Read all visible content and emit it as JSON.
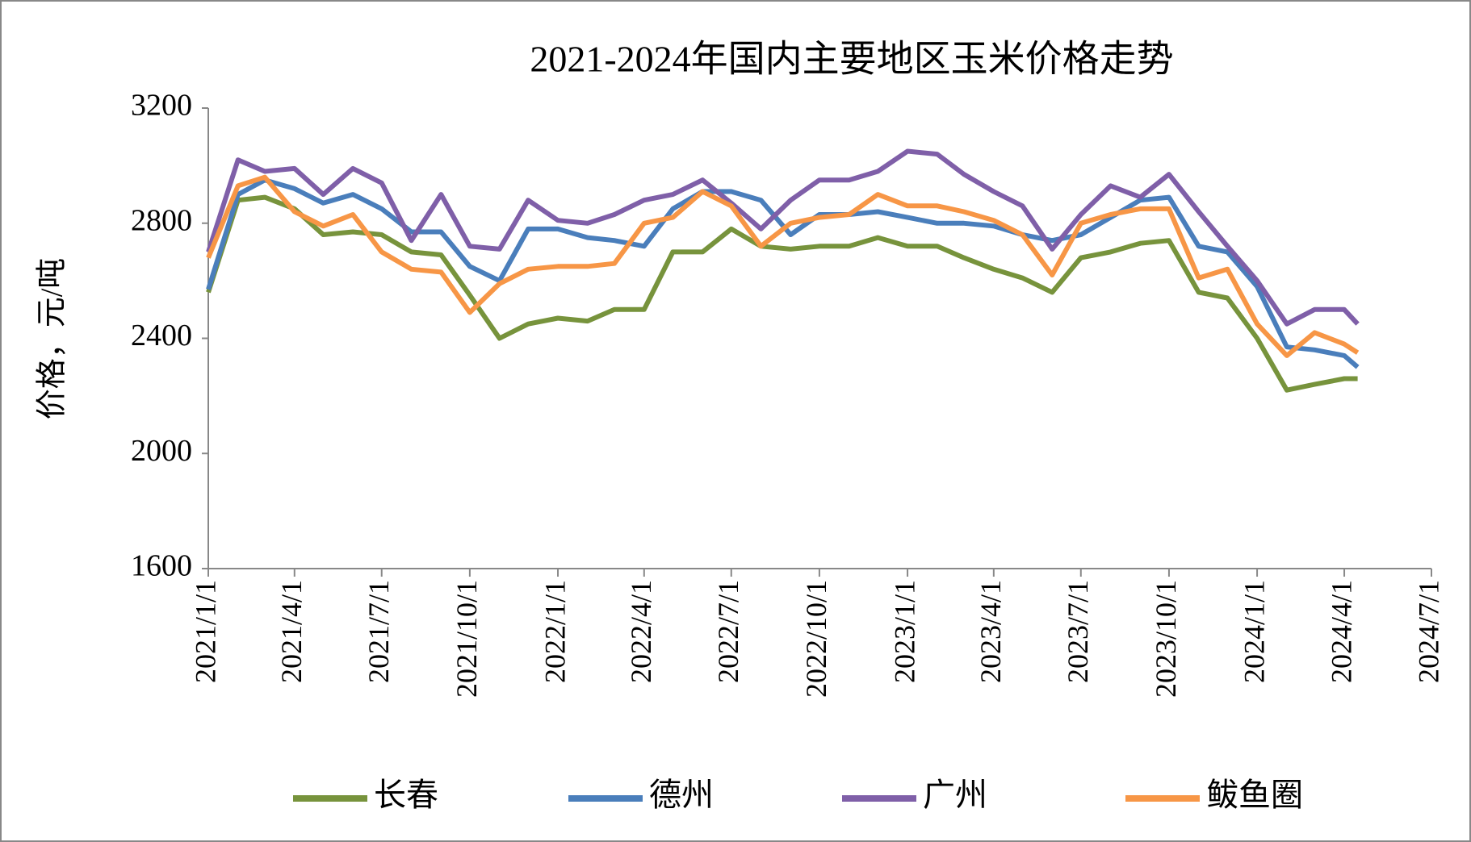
{
  "chart_data": {
    "type": "line",
    "title": "2021-2024年国内主要地区玉米价格走势",
    "y_label": "价格，元/吨",
    "x": [
      "2021/1/1",
      "2021/2/1",
      "2021/3/1",
      "2021/4/1",
      "2021/5/1",
      "2021/6/1",
      "2021/7/1",
      "2021/8/1",
      "2021/9/1",
      "2021/10/1",
      "2021/11/1",
      "2021/12/1",
      "2022/1/1",
      "2022/2/1",
      "2022/3/1",
      "2022/4/1",
      "2022/5/1",
      "2022/6/1",
      "2022/7/1",
      "2022/8/1",
      "2022/9/1",
      "2022/10/1",
      "2022/11/1",
      "2022/12/1",
      "2023/1/1",
      "2023/2/1",
      "2023/3/1",
      "2023/4/1",
      "2023/5/1",
      "2023/6/1",
      "2023/7/1",
      "2023/8/1",
      "2023/9/1",
      "2023/10/1",
      "2023/11/1",
      "2023/12/1",
      "2024/1/1",
      "2024/2/1",
      "2024/3/1",
      "2024/4/1",
      "2024/4/15"
    ],
    "series": [
      {
        "name": "长春",
        "color": "#77933c",
        "values": [
          2560,
          2880,
          2890,
          2850,
          2760,
          2770,
          2760,
          2700,
          2690,
          2550,
          2400,
          2450,
          2470,
          2460,
          2500,
          2500,
          2700,
          2700,
          2780,
          2720,
          2710,
          2720,
          2720,
          2750,
          2720,
          2720,
          2680,
          2640,
          2610,
          2560,
          2680,
          2700,
          2730,
          2740,
          2560,
          2540,
          2400,
          2220,
          2240,
          2260,
          2260
        ]
      },
      {
        "name": "德州",
        "color": "#4a7ebb",
        "values": [
          2570,
          2900,
          2950,
          2920,
          2870,
          2900,
          2850,
          2770,
          2770,
          2650,
          2600,
          2780,
          2780,
          2750,
          2740,
          2720,
          2850,
          2910,
          2910,
          2880,
          2760,
          2830,
          2830,
          2840,
          2820,
          2800,
          2800,
          2790,
          2760,
          2740,
          2760,
          2820,
          2880,
          2890,
          2720,
          2700,
          2580,
          2370,
          2360,
          2340,
          2300
        ]
      },
      {
        "name": "广州",
        "color": "#7f5fa8",
        "values": [
          2700,
          3020,
          2980,
          2990,
          2900,
          2990,
          2940,
          2740,
          2900,
          2720,
          2710,
          2880,
          2810,
          2800,
          2830,
          2880,
          2900,
          2950,
          2870,
          2780,
          2880,
          2950,
          2950,
          2980,
          3050,
          3040,
          2970,
          2910,
          2860,
          2710,
          2830,
          2930,
          2890,
          2970,
          2840,
          2720,
          2600,
          2450,
          2500,
          2500,
          2450
        ]
      },
      {
        "name": "鲅鱼圈",
        "color": "#f79646",
        "values": [
          2680,
          2930,
          2960,
          2840,
          2790,
          2830,
          2700,
          2640,
          2630,
          2490,
          2590,
          2640,
          2650,
          2650,
          2660,
          2800,
          2820,
          2910,
          2860,
          2720,
          2800,
          2820,
          2830,
          2900,
          2860,
          2860,
          2840,
          2810,
          2760,
          2620,
          2800,
          2830,
          2850,
          2850,
          2610,
          2640,
          2450,
          2340,
          2420,
          2380,
          2350
        ]
      }
    ],
    "xlim": [
      "2021/1/1",
      "2024/7/1"
    ],
    "xticks": [
      "2021/1/1",
      "2021/4/1",
      "2021/7/1",
      "2021/10/1",
      "2022/1/1",
      "2022/4/1",
      "2022/7/1",
      "2022/10/1",
      "2023/1/1",
      "2023/4/1",
      "2023/7/1",
      "2023/10/1",
      "2024/1/1",
      "2024/4/1",
      "2024/7/1"
    ],
    "ylim": [
      1600,
      3200
    ],
    "yticks": [
      1600,
      2000,
      2400,
      2800,
      3200
    ],
    "grid": false,
    "legend": "bottom"
  }
}
